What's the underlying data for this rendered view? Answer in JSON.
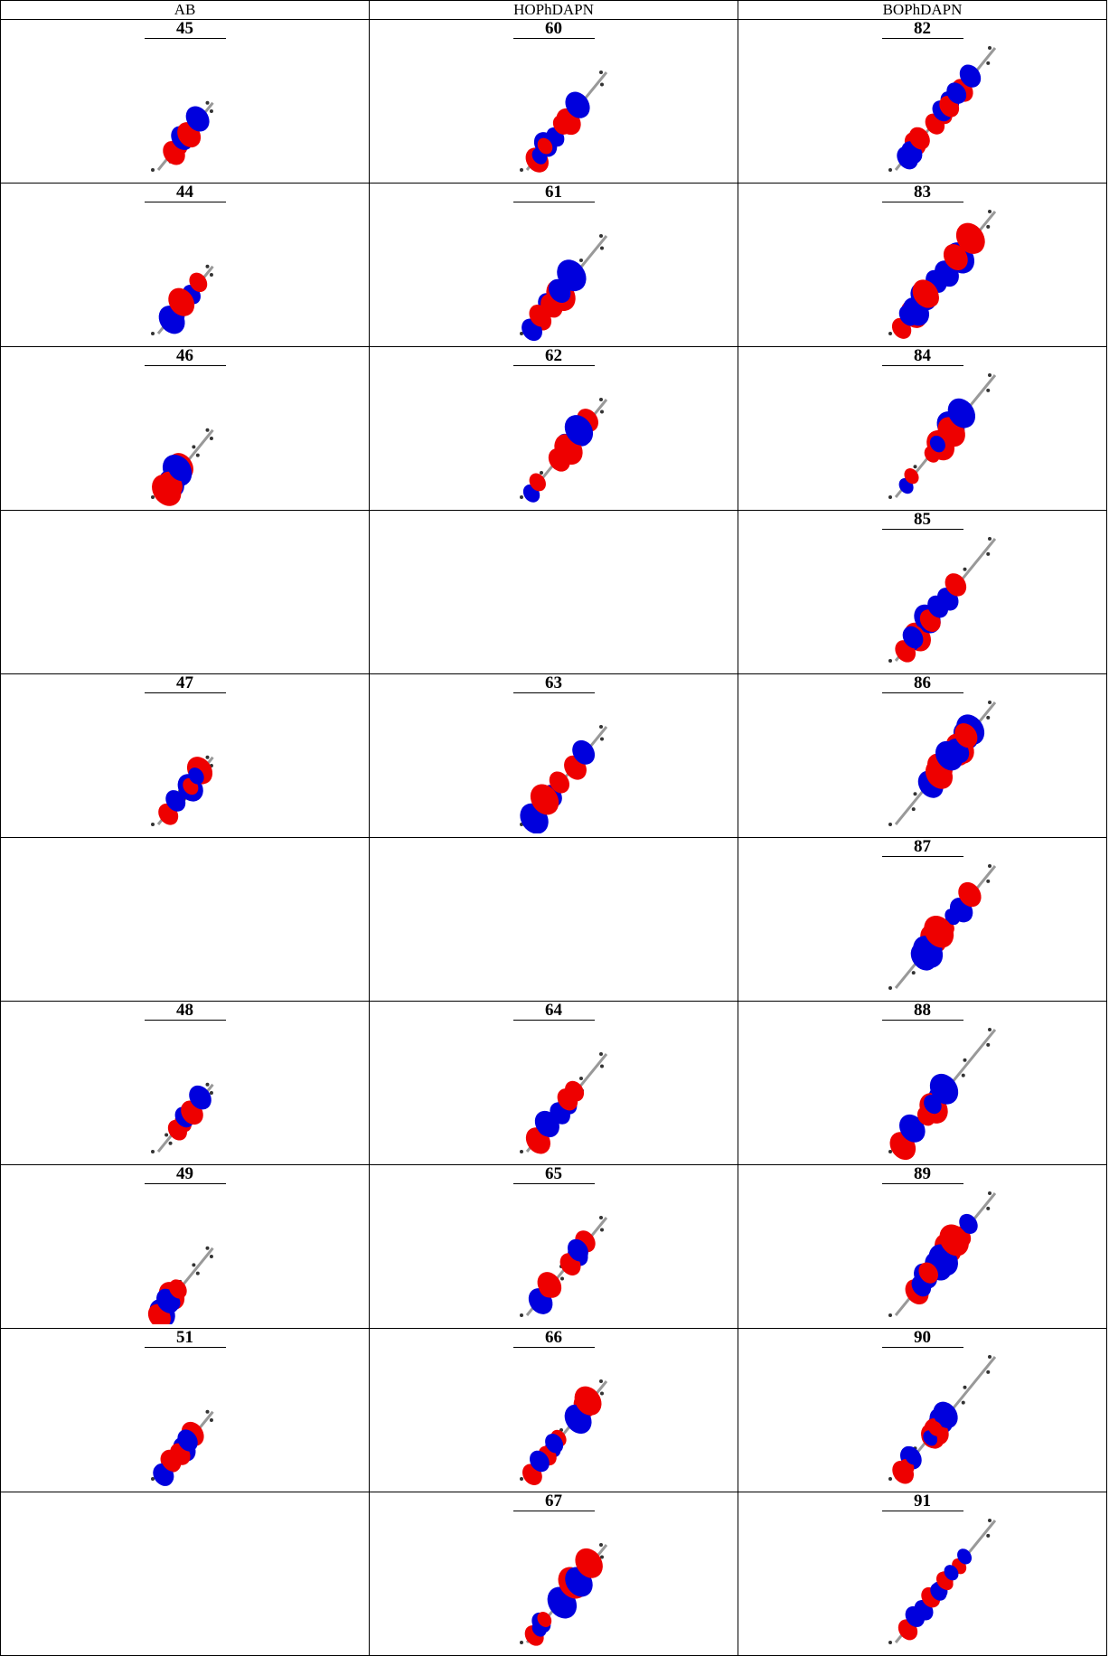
{
  "table": {
    "headers": [
      "AB",
      "HOPhDAPN",
      "BOPhDAPN"
    ],
    "rows": [
      [
        "45",
        "60",
        "82"
      ],
      [
        "44",
        "61",
        "83"
      ],
      [
        "46",
        "62",
        "84"
      ],
      [
        null,
        null,
        "85"
      ],
      [
        "47",
        "63",
        "86"
      ],
      [
        null,
        null,
        "87"
      ],
      [
        "48",
        "64",
        "88"
      ],
      [
        "49",
        "65",
        "89"
      ],
      [
        "51",
        "66",
        "90"
      ],
      [
        null,
        "67",
        "91"
      ]
    ]
  }
}
